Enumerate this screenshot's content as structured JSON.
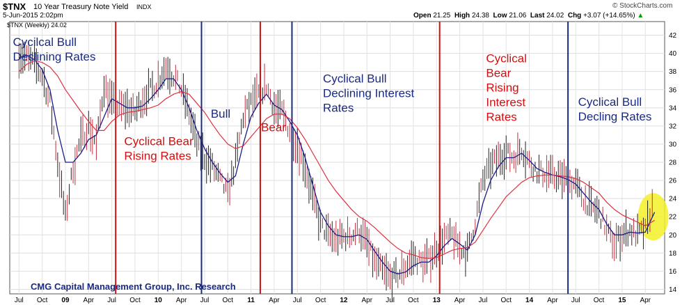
{
  "header": {
    "symbol": "$TNX",
    "name": "10 Year Treasury Note Yield",
    "exchange": "INDX",
    "date": "5-Jun-2015 2:02pm",
    "open_label": "Open",
    "open_value": "21.25",
    "high_label": "High",
    "high_value": "24.38",
    "low_label": "Low",
    "low_value": "21.06",
    "last_label": "Last",
    "last_value": "24.02",
    "chg_label": "Chg",
    "chg_value": "+3.07 (+14.65%)",
    "source": "© StockCharts.com",
    "inner_label": "$TNX (Weekly) 24.02"
  },
  "chart_data": {
    "type": "line",
    "title": "$TNX 10 Year Treasury Note Yield",
    "ylim": [
      13.5,
      43.5
    ],
    "yticks": [
      14,
      16,
      18,
      20,
      22,
      24,
      26,
      28,
      30,
      32,
      34,
      36,
      38,
      40,
      42
    ],
    "xticks": [
      {
        "label": "Jul",
        "t": 0,
        "bold": false
      },
      {
        "label": "Oct",
        "t": 3,
        "bold": false
      },
      {
        "label": "09",
        "t": 6,
        "bold": true
      },
      {
        "label": "Apr",
        "t": 9,
        "bold": false
      },
      {
        "label": "Jul",
        "t": 12,
        "bold": false
      },
      {
        "label": "Oct",
        "t": 15,
        "bold": false
      },
      {
        "label": "10",
        "t": 18,
        "bold": true
      },
      {
        "label": "Apr",
        "t": 21,
        "bold": false
      },
      {
        "label": "Jul",
        "t": 24,
        "bold": false
      },
      {
        "label": "Oct",
        "t": 27,
        "bold": false
      },
      {
        "label": "11",
        "t": 30,
        "bold": true
      },
      {
        "label": "Apr",
        "t": 33,
        "bold": false
      },
      {
        "label": "Jul",
        "t": 36,
        "bold": false
      },
      {
        "label": "Oct",
        "t": 39,
        "bold": false
      },
      {
        "label": "12",
        "t": 42,
        "bold": true
      },
      {
        "label": "Apr",
        "t": 45,
        "bold": false
      },
      {
        "label": "Jul",
        "t": 48,
        "bold": false
      },
      {
        "label": "Oct",
        "t": 51,
        "bold": false
      },
      {
        "label": "13",
        "t": 54,
        "bold": true
      },
      {
        "label": "Apr",
        "t": 57,
        "bold": false
      },
      {
        "label": "Jul",
        "t": 60,
        "bold": false
      },
      {
        "label": "Oct",
        "t": 63,
        "bold": false
      },
      {
        "label": "14",
        "t": 66,
        "bold": true
      },
      {
        "label": "Apr",
        "t": 69,
        "bold": false
      },
      {
        "label": "Jul",
        "t": 72,
        "bold": false
      },
      {
        "label": "Oct",
        "t": 75,
        "bold": false
      },
      {
        "label": "15",
        "t": 78,
        "bold": true
      },
      {
        "label": "Apr",
        "t": 81,
        "bold": false
      }
    ],
    "x": [
      0,
      1,
      2,
      3,
      4,
      5,
      6,
      7,
      8,
      9,
      10,
      11,
      12,
      13,
      14,
      15,
      16,
      17,
      18,
      19,
      20,
      21,
      22,
      23,
      24,
      25,
      26,
      27,
      28,
      29,
      30,
      31,
      32,
      33,
      34,
      35,
      36,
      37,
      38,
      39,
      40,
      41,
      42,
      43,
      44,
      45,
      46,
      47,
      48,
      49,
      50,
      51,
      52,
      53,
      54,
      55,
      56,
      57,
      58,
      59,
      60,
      61,
      62,
      63,
      64,
      65,
      66,
      67,
      68,
      69,
      70,
      71,
      72,
      73,
      74,
      75,
      76,
      77,
      78,
      79,
      80,
      81,
      82.2
    ],
    "series": [
      {
        "values": [
          40.0,
          39.5,
          38.8,
          37.5,
          34.5,
          28.0,
          22.0,
          27.5,
          30.5,
          32.0,
          30.0,
          36.5,
          34.5,
          34.0,
          34.0,
          33.5,
          35.0,
          36.0,
          37.0,
          38.5,
          37.5,
          36.0,
          33.5,
          30.0,
          28.5,
          27.5,
          26.0,
          24.5,
          28.0,
          33.0,
          34.5,
          35.5,
          36.5,
          34.0,
          33.5,
          31.5,
          30.0,
          27.5,
          24.0,
          21.0,
          20.0,
          19.5,
          19.8,
          20.0,
          20.5,
          19.0,
          17.0,
          16.0,
          15.2,
          15.5,
          16.5,
          17.5,
          17.0,
          17.2,
          18.5,
          19.5,
          20.0,
          18.5,
          18.0,
          21.5,
          26.0,
          27.5,
          28.5,
          29.0,
          28.5,
          29.5,
          28.0,
          27.0,
          26.8,
          26.5,
          26.3,
          26.0,
          25.5,
          24.0,
          23.0,
          22.5,
          20.5,
          19.0,
          20.0,
          20.5,
          20.0,
          20.5,
          24.0
        ]
      },
      {
        "values": [
          39.5,
          39.8,
          39.3,
          38.2,
          36.0,
          31.5,
          28.0,
          28.0,
          29.0,
          30.5,
          31.0,
          33.0,
          35.0,
          34.5,
          34.0,
          34.0,
          34.2,
          35.0,
          36.0,
          37.2,
          37.2,
          36.0,
          34.0,
          31.5,
          29.5,
          28.0,
          26.8,
          25.8,
          26.5,
          30.0,
          33.0,
          34.5,
          35.5,
          34.3,
          33.8,
          32.5,
          31.0,
          28.5,
          25.5,
          22.5,
          21.0,
          20.0,
          19.8,
          19.8,
          20.0,
          19.5,
          18.2,
          17.0,
          16.0,
          15.7,
          15.9,
          16.6,
          17.0,
          17.0,
          17.7,
          18.8,
          19.6,
          19.0,
          18.3,
          20.0,
          23.5,
          26.0,
          27.5,
          28.5,
          28.5,
          29.0,
          28.2,
          27.3,
          26.9,
          26.6,
          26.4,
          26.1,
          25.6,
          24.6,
          23.6,
          22.8,
          21.2,
          20.0,
          20.0,
          20.3,
          20.2,
          20.3,
          22.5
        ]
      },
      {
        "values": [
          38.0,
          38.8,
          39.2,
          39.0,
          38.5,
          37.5,
          36.0,
          34.8,
          33.6,
          32.5,
          31.5,
          31.5,
          32.5,
          33.2,
          33.5,
          33.6,
          33.8,
          34.0,
          34.3,
          35.0,
          35.5,
          35.8,
          35.5,
          34.5,
          33.5,
          32.2,
          31.0,
          30.0,
          29.5,
          29.8,
          30.8,
          31.8,
          32.8,
          33.3,
          33.3,
          32.8,
          31.8,
          30.5,
          29.0,
          27.5,
          26.0,
          24.8,
          23.8,
          22.8,
          22.0,
          21.5,
          20.8,
          20.0,
          19.2,
          18.5,
          18.0,
          17.8,
          17.5,
          17.4,
          17.5,
          17.9,
          18.3,
          18.5,
          18.6,
          19.2,
          20.5,
          21.8,
          23.0,
          24.2,
          25.0,
          25.8,
          26.3,
          26.5,
          26.6,
          26.6,
          26.5,
          26.4,
          26.2,
          25.8,
          25.2,
          24.6,
          23.6,
          22.8,
          22.2,
          21.8,
          21.4,
          21.0,
          21.6
        ]
      }
    ],
    "annotations": {
      "texts": [
        {
          "lines": [
            "Cycilcal Bull",
            "Declining Rates"
          ],
          "color": "#1a2a80",
          "t": -0.8,
          "y": 40.8
        },
        {
          "lines": [
            "Cyclical Bear",
            "Rising Rates"
          ],
          "color": "#d01010",
          "t": 13.6,
          "y": 29.9
        },
        {
          "lines": [
            "Bull"
          ],
          "color": "#1a2a80",
          "t": 24.8,
          "y": 32.9
        },
        {
          "lines": [
            "Bear"
          ],
          "color": "#d01010",
          "t": 31.3,
          "y": 31.4
        },
        {
          "lines": [
            "Cyclical Bull",
            "Declining Interest",
            "Rates"
          ],
          "color": "#1a2a80",
          "t": 39.3,
          "y": 36.8
        },
        {
          "lines": [
            "Cyclical",
            "Bear",
            "Rising",
            "Interest",
            "Rates"
          ],
          "color": "#d01010",
          "t": 60.4,
          "y": 39.0
        },
        {
          "lines": [
            "Cyclical Bull",
            "Decling Rates"
          ],
          "color": "#1a2a80",
          "t": 72.3,
          "y": 34.2
        }
      ],
      "footer": "CMG Capital Management Group, Inc.  Research",
      "red_lines": [
        12.5,
        31.2,
        54.4
      ],
      "blue_lines": [
        23.6,
        35.3,
        71.0
      ]
    }
  }
}
